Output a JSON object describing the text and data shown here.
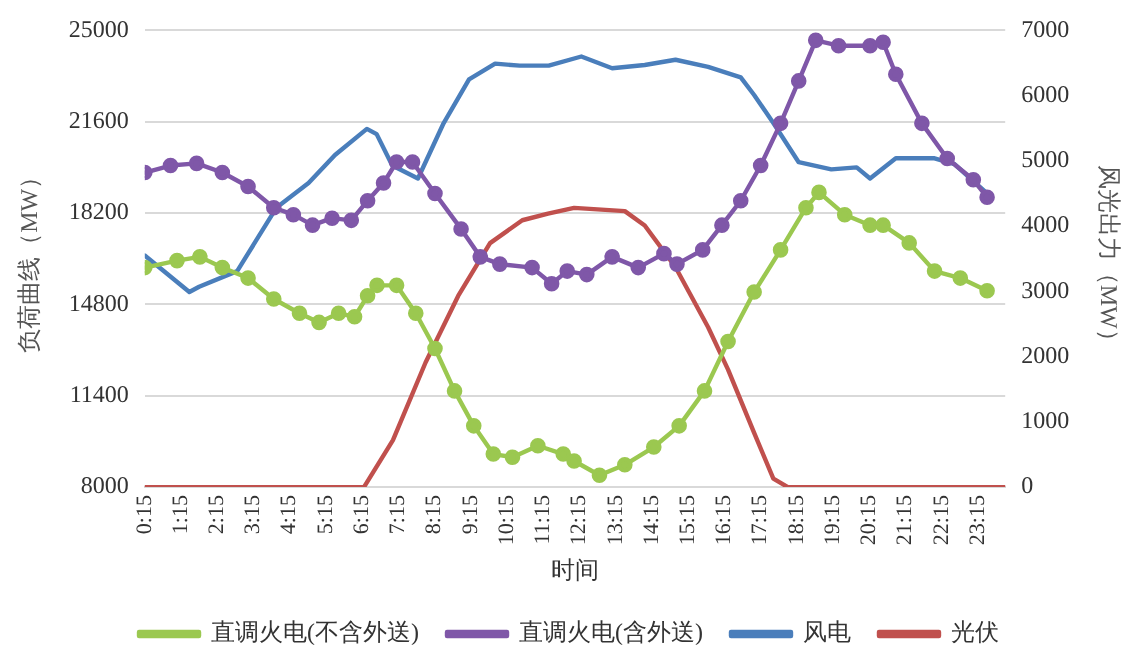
{
  "chart_data": {
    "type": "line",
    "xlabel": "时间",
    "ylabel": "负荷曲线（MW）",
    "y2label": "风光出力（MW）",
    "xlim": [
      0.25,
      24
    ],
    "xticks": [
      {
        "value": 0.25,
        "label": "0:15"
      },
      {
        "value": 1.25,
        "label": "1:15"
      },
      {
        "value": 2.25,
        "label": "2:15"
      },
      {
        "value": 3.25,
        "label": "3:15"
      },
      {
        "value": 4.25,
        "label": "4:15"
      },
      {
        "value": 5.25,
        "label": "5:15"
      },
      {
        "value": 6.25,
        "label": "6:15"
      },
      {
        "value": 7.25,
        "label": "7:15"
      },
      {
        "value": 8.25,
        "label": "8:15"
      },
      {
        "value": 9.25,
        "label": "9:15"
      },
      {
        "value": 10.25,
        "label": "10:15"
      },
      {
        "value": 11.25,
        "label": "11:15"
      },
      {
        "value": 12.25,
        "label": "12:15"
      },
      {
        "value": 13.25,
        "label": "13:15"
      },
      {
        "value": 14.25,
        "label": "14:15"
      },
      {
        "value": 15.25,
        "label": "15:15"
      },
      {
        "value": 16.25,
        "label": "16:15"
      },
      {
        "value": 17.25,
        "label": "17:15"
      },
      {
        "value": 18.25,
        "label": "18:15"
      },
      {
        "value": 19.25,
        "label": "19:15"
      },
      {
        "value": 20.25,
        "label": "20:15"
      },
      {
        "value": 21.25,
        "label": "21:15"
      },
      {
        "value": 22.25,
        "label": "22:15"
      },
      {
        "value": 23.25,
        "label": "23:15"
      }
    ],
    "ylim": [
      8000,
      25000
    ],
    "yticks": [
      8000,
      11400,
      14800,
      18200,
      21600,
      25000
    ],
    "y2lim": [
      0,
      7000
    ],
    "y2ticks": [
      0,
      1000,
      2000,
      3000,
      4000,
      5000,
      6000,
      7000
    ],
    "grid": "y",
    "legend": "bottom",
    "line_style": "solid",
    "series": [
      {
        "name": "直调火电(不含外送)",
        "color": "#9bc850",
        "marker": "circle",
        "x": [
          0.25,
          1.14,
          1.77,
          2.39,
          3.1,
          3.81,
          4.52,
          5.06,
          5.6,
          6.04,
          6.4,
          6.66,
          7.2,
          7.73,
          8.26,
          8.8,
          9.33,
          9.87,
          10.4,
          11.1,
          11.8,
          12.1,
          12.8,
          13.5,
          14.3,
          15.0,
          15.7,
          16.35,
          17.07,
          17.8,
          18.5,
          18.86,
          19.57,
          20.27,
          20.63,
          21.35,
          22.05,
          22.76,
          23.5
        ],
        "values": [
          16170,
          16430,
          16570,
          16170,
          15780,
          15000,
          14470,
          14130,
          14470,
          14340,
          15120,
          15510,
          15510,
          14470,
          13160,
          11580,
          10280,
          9230,
          9110,
          9540,
          9230,
          8970,
          8440,
          8830,
          9490,
          10280,
          11580,
          13420,
          15260,
          16830,
          18400,
          18970,
          18140,
          17750,
          17750,
          17090,
          16040,
          15780,
          15310
        ]
      },
      {
        "name": "直调火电(含外送)",
        "color": "#7f57a8",
        "marker": "circle",
        "x": [
          0.25,
          0.96,
          1.68,
          2.39,
          3.1,
          3.81,
          4.35,
          4.88,
          5.42,
          5.95,
          6.4,
          6.84,
          7.2,
          7.64,
          8.26,
          8.98,
          9.51,
          10.05,
          10.94,
          11.48,
          11.91,
          12.45,
          13.15,
          13.87,
          14.58,
          14.94,
          15.65,
          16.18,
          16.7,
          17.25,
          17.8,
          18.3,
          18.77,
          19.4,
          20.27,
          20.63,
          20.98,
          21.7,
          22.4,
          23.12,
          23.5
        ],
        "values": [
          19710,
          19970,
          20050,
          19710,
          19190,
          18400,
          18140,
          17750,
          18010,
          17930,
          18660,
          19320,
          20100,
          20100,
          18930,
          17610,
          16570,
          16300,
          16170,
          15570,
          16040,
          15910,
          16570,
          16170,
          16690,
          16300,
          16830,
          17750,
          18660,
          19970,
          21540,
          23120,
          24630,
          24430,
          24430,
          24560,
          23370,
          21540,
          20230,
          19440,
          18790
        ]
      },
      {
        "name": "风电",
        "color": "#4a7ebb",
        "marker": "none",
        "axis": "y2",
        "x": [
          0.25,
          1.48,
          1.75,
          2.8,
          3.88,
          4.77,
          5.5,
          6.38,
          6.65,
          7.08,
          7.79,
          8.5,
          9.2,
          9.92,
          10.6,
          11.4,
          12.3,
          13.15,
          14.05,
          14.9,
          15.8,
          16.7,
          17.07,
          17.6,
          18.3,
          19.2,
          19.9,
          20.27,
          20.98,
          22.05,
          22.6,
          23.5
        ],
        "values": [
          3550,
          2990,
          3070,
          3310,
          4280,
          4660,
          5090,
          5490,
          5410,
          4930,
          4730,
          5580,
          6250,
          6490,
          6460,
          6460,
          6600,
          6420,
          6470,
          6550,
          6440,
          6280,
          6010,
          5580,
          4980,
          4870,
          4900,
          4730,
          5040,
          5040,
          4950,
          4500
        ]
      },
      {
        "name": "光伏",
        "color": "#c0504d",
        "marker": "none",
        "axis": "y2",
        "x": [
          0.25,
          6.3,
          7.1,
          8.0,
          8.9,
          9.78,
          10.67,
          11.38,
          12.1,
          13.5,
          14.05,
          14.9,
          15.8,
          16.35,
          17.07,
          17.6,
          18.0,
          24.0
        ],
        "values": [
          0,
          0,
          720,
          1910,
          2930,
          3740,
          4090,
          4190,
          4280,
          4230,
          4010,
          3370,
          2450,
          1800,
          830,
          130,
          0,
          0
        ]
      }
    ]
  }
}
